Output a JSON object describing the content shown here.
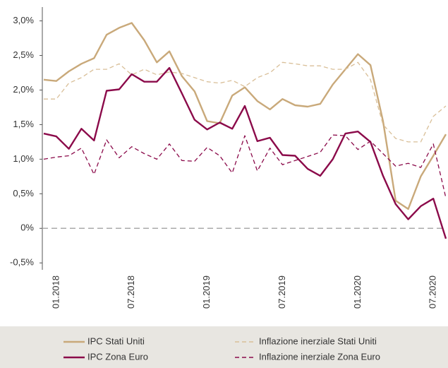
{
  "chart_data": {
    "type": "line",
    "categories": [
      null,
      "01.2018",
      null,
      null,
      null,
      null,
      null,
      "07.2018",
      null,
      null,
      null,
      null,
      null,
      "01.2019",
      null,
      null,
      null,
      null,
      null,
      "07.2019",
      null,
      null,
      null,
      null,
      null,
      "01.2020",
      null,
      null,
      null,
      null,
      null,
      "07.2020",
      null
    ],
    "series": [
      {
        "name": "IPC Stati Uniti",
        "color": "#c9a97a",
        "dashed": false,
        "values": [
          2.15,
          2.13,
          2.27,
          2.38,
          2.46,
          2.8,
          2.9,
          2.97,
          2.72,
          2.4,
          2.56,
          2.2,
          1.98,
          1.55,
          1.52,
          1.92,
          2.04,
          1.84,
          1.72,
          1.87,
          1.78,
          1.76,
          1.8,
          2.08,
          2.3,
          2.52,
          2.36,
          1.55,
          0.4,
          0.28,
          0.75,
          1.05,
          1.36
        ]
      },
      {
        "name": "Inflazione inerziale Stati Uniti",
        "color": "#d9bf98",
        "dashed": true,
        "values": [
          1.87,
          1.87,
          2.1,
          2.18,
          2.3,
          2.3,
          2.38,
          2.22,
          2.3,
          2.22,
          2.26,
          2.24,
          2.18,
          2.12,
          2.1,
          2.14,
          2.05,
          2.18,
          2.25,
          2.4,
          2.38,
          2.35,
          2.35,
          2.3,
          2.3,
          2.4,
          2.15,
          1.5,
          1.3,
          1.25,
          1.25,
          1.62,
          1.77
        ]
      },
      {
        "name": "IPC Zona Euro",
        "color": "#8b0a4a",
        "dashed": false,
        "values": [
          1.37,
          1.33,
          1.15,
          1.44,
          1.27,
          1.99,
          2.01,
          2.23,
          2.12,
          2.12,
          2.32,
          1.95,
          1.57,
          1.43,
          1.53,
          1.44,
          1.77,
          1.26,
          1.31,
          1.06,
          1.05,
          0.86,
          0.76,
          1.0,
          1.37,
          1.4,
          1.25,
          0.76,
          0.35,
          0.13,
          0.32,
          0.43,
          -0.15
        ]
      },
      {
        "name": "Inflazione inerziale Zona Euro",
        "color": "#8b0a4a",
        "dashed": true,
        "values": [
          1.0,
          1.03,
          1.05,
          1.16,
          0.78,
          1.28,
          1.02,
          1.18,
          1.08,
          1.0,
          1.22,
          0.98,
          0.97,
          1.17,
          1.05,
          0.8,
          1.34,
          0.83,
          1.16,
          0.92,
          0.98,
          1.04,
          1.1,
          1.35,
          1.34,
          1.14,
          1.26,
          1.08,
          0.9,
          0.94,
          0.88,
          1.22,
          0.44
        ]
      }
    ],
    "ylim": [
      -0.6,
      3.2
    ],
    "yticks": [
      {
        "value": -0.5,
        "label": "-0,5%"
      },
      {
        "value": 0,
        "label": "0%"
      },
      {
        "value": 0.5,
        "label": "0,5%"
      },
      {
        "value": 1.0,
        "label": "1,0%"
      },
      {
        "value": 1.5,
        "label": "1,5%"
      },
      {
        "value": 2.0,
        "label": "2,0%"
      },
      {
        "value": 2.5,
        "label": "2,5%"
      },
      {
        "value": 3.0,
        "label": "3,0%"
      }
    ],
    "hline": 0,
    "grid": false
  }
}
